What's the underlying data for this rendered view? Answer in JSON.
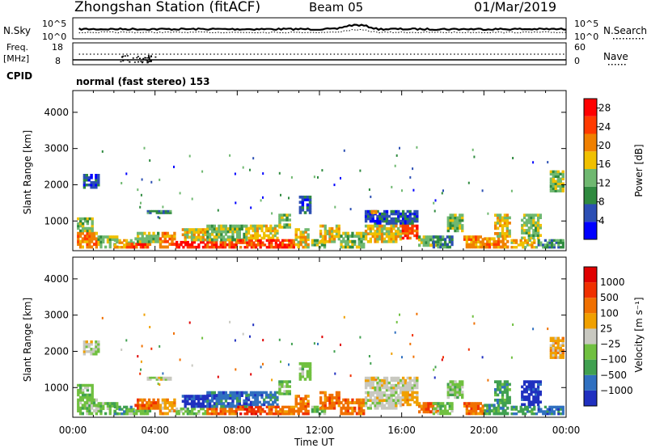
{
  "header": {
    "station": "Zhongshan Station (fitACF)",
    "beam": "Beam 05",
    "date": "01/Mar/2019"
  },
  "nsky_panel": {
    "left_label": "N.Sky",
    "right_label": "N.Search",
    "left_ticks": [
      "10^5",
      "10^0"
    ],
    "right_ticks": [
      "10^5",
      "10^0"
    ]
  },
  "freq_panel": {
    "left_label_1": "Freq.",
    "left_label_2": "[MHz]",
    "right_label": "Nave",
    "left_ticks": [
      "18",
      "8"
    ],
    "right_ticks": [
      "60",
      "0"
    ]
  },
  "cpid": {
    "label": "CPID",
    "mode": "normal (fast stereo) 153"
  },
  "colors": {
    "power": [
      "#0000ff",
      "#2c4fb4",
      "#2f8a3f",
      "#6fb870",
      "#f0c000",
      "#f08000",
      "#ff3a00",
      "#ff0000"
    ],
    "velocity": [
      "#2030c0",
      "#3070c0",
      "#40a050",
      "#70c040",
      "#c8c8c0",
      "#f0a000",
      "#f07000",
      "#f03000",
      "#e00000"
    ]
  },
  "chart_data": [
    {
      "type": "heatmap",
      "name": "power",
      "ylabel": "Slant Range [km]",
      "ylim": [
        180,
        4600
      ],
      "y_ticks": [
        "1000",
        "2000",
        "3000",
        "4000"
      ],
      "x_ticks": [
        "00:00",
        "04:00",
        "08:00",
        "12:00",
        "16:00",
        "20:00",
        "00:00"
      ],
      "xlim_hours": [
        0,
        24
      ],
      "colorbar_label": "Power [dB]",
      "colorbar_ticks": [
        "4",
        "8",
        "12",
        "16",
        "20",
        "24",
        "28"
      ],
      "colorbar_range": [
        0,
        30
      ]
    },
    {
      "type": "heatmap",
      "name": "velocity",
      "ylabel": "Slant Range [km]",
      "ylim": [
        180,
        4600
      ],
      "y_ticks": [
        "1000",
        "2000",
        "3000",
        "4000"
      ],
      "x_ticks": [
        "00:00",
        "04:00",
        "08:00",
        "12:00",
        "16:00",
        "20:00",
        "00:00"
      ],
      "xlabel": "Time UT",
      "colorbar_label": "Velocity [m s⁻¹]",
      "colorbar_ticks": [
        "1000",
        "500",
        "100",
        "25",
        "−25",
        "−100",
        "−500",
        "−1000"
      ]
    }
  ]
}
